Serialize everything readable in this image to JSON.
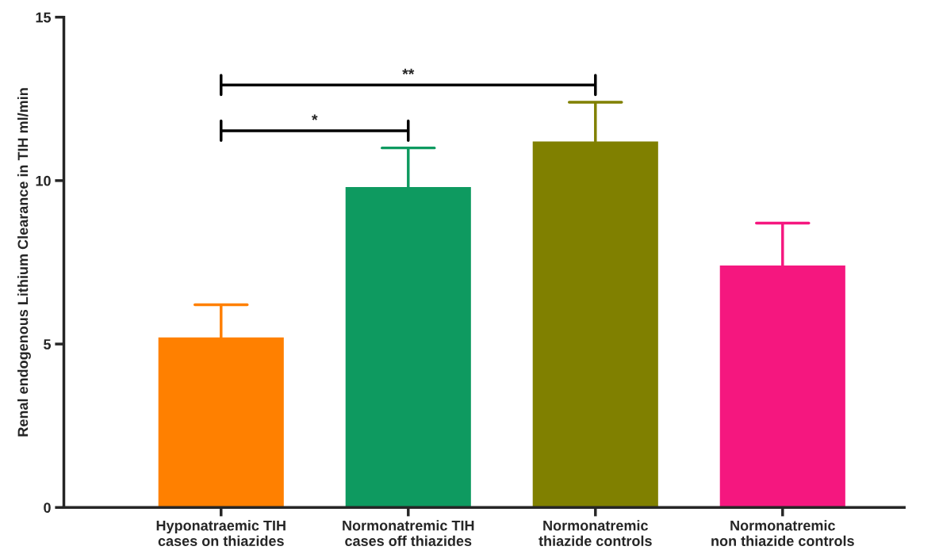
{
  "chart_data": {
    "type": "bar",
    "categories": [
      "Hyponatraemic TIH\ncases on thiazides",
      "Normonatremic TIH\ncases off thiazides",
      "Normonatremic\nthiazide controls",
      "Normonatremic\nnon thiazide controls"
    ],
    "values": [
      5.2,
      9.8,
      11.2,
      7.4
    ],
    "errors": [
      [
        5.2,
        6.2
      ],
      [
        9.8,
        11.0
      ],
      [
        11.2,
        12.4
      ],
      [
        7.4,
        8.7
      ]
    ],
    "colors": [
      "#ff8000",
      "#0e9a60",
      "#808000",
      "#f5177f"
    ],
    "ylabel": "Renal endogenous Lithium Clearance in TIH ml/min",
    "ylim": [
      0,
      15
    ],
    "yticks": [
      0,
      5,
      10,
      15
    ],
    "annotations": [
      "*",
      "**"
    ],
    "grid": false
  }
}
